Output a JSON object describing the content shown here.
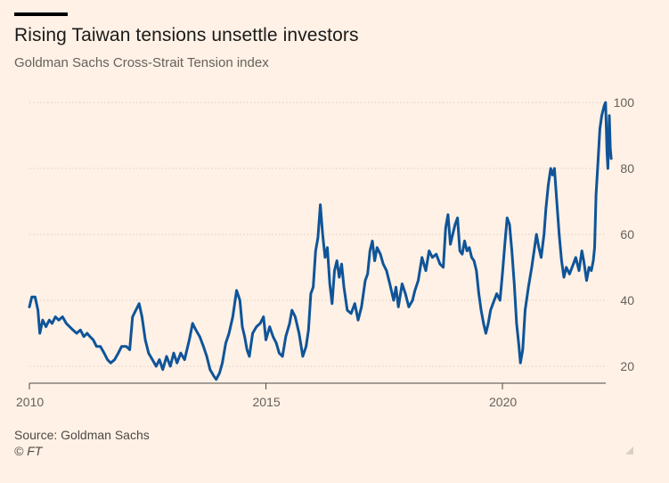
{
  "header": {
    "title": "Rising Taiwan tensions unsettle investors",
    "subtitle": "Goldman Sachs Cross-Strait Tension index"
  },
  "footer": {
    "source": "Source: Goldman Sachs",
    "copyright": "© FT"
  },
  "colors": {
    "background": "#fff1e5",
    "line": "#0f5499",
    "grid": "#d9cec5",
    "axis": "#66605c"
  },
  "chart_data": {
    "type": "line",
    "title": "Rising Taiwan tensions unsettle investors",
    "subtitle": "Goldman Sachs Cross-Strait Tension index",
    "xlabel": "",
    "ylabel": "",
    "xlim": [
      2010,
      2022.3
    ],
    "ylim": [
      15,
      100
    ],
    "x_ticks": [
      2010,
      2015,
      2020
    ],
    "x_tick_labels": [
      "2010",
      "2015",
      "2020"
    ],
    "y_ticks": [
      20,
      40,
      60,
      80,
      100
    ],
    "y_tick_labels": [
      "20",
      "40",
      "60",
      "80",
      "100"
    ],
    "y_axis_side": "right",
    "grid": "horizontal dotted",
    "legend": "none",
    "series": [
      {
        "points": [
          [
            2010.0,
            38
          ],
          [
            2010.05,
            41
          ],
          [
            2010.12,
            41
          ],
          [
            2010.18,
            37
          ],
          [
            2010.22,
            30
          ],
          [
            2010.28,
            34
          ],
          [
            2010.35,
            32
          ],
          [
            2010.42,
            34
          ],
          [
            2010.48,
            33
          ],
          [
            2010.55,
            35
          ],
          [
            2010.62,
            34
          ],
          [
            2010.7,
            35
          ],
          [
            2010.78,
            33
          ],
          [
            2010.85,
            32
          ],
          [
            2010.92,
            31
          ],
          [
            2011.0,
            30
          ],
          [
            2011.08,
            31
          ],
          [
            2011.15,
            29
          ],
          [
            2011.22,
            30
          ],
          [
            2011.28,
            29
          ],
          [
            2011.35,
            28
          ],
          [
            2011.42,
            26
          ],
          [
            2011.5,
            26
          ],
          [
            2011.58,
            24
          ],
          [
            2011.65,
            22
          ],
          [
            2011.72,
            21
          ],
          [
            2011.8,
            22
          ],
          [
            2011.88,
            24
          ],
          [
            2011.95,
            26
          ],
          [
            2012.05,
            26
          ],
          [
            2012.12,
            25
          ],
          [
            2012.18,
            35
          ],
          [
            2012.25,
            37
          ],
          [
            2012.32,
            39
          ],
          [
            2012.38,
            35
          ],
          [
            2012.45,
            28
          ],
          [
            2012.52,
            24
          ],
          [
            2012.6,
            22
          ],
          [
            2012.68,
            20
          ],
          [
            2012.75,
            22
          ],
          [
            2012.82,
            19
          ],
          [
            2012.9,
            23
          ],
          [
            2012.98,
            20
          ],
          [
            2013.05,
            24
          ],
          [
            2013.12,
            21
          ],
          [
            2013.2,
            24
          ],
          [
            2013.28,
            22
          ],
          [
            2013.38,
            28
          ],
          [
            2013.45,
            33
          ],
          [
            2013.52,
            31
          ],
          [
            2013.6,
            29
          ],
          [
            2013.68,
            26
          ],
          [
            2013.75,
            23
          ],
          [
            2013.82,
            19
          ],
          [
            2013.9,
            17
          ],
          [
            2013.95,
            16
          ],
          [
            2014.02,
            18
          ],
          [
            2014.08,
            21
          ],
          [
            2014.15,
            27
          ],
          [
            2014.22,
            30
          ],
          [
            2014.3,
            35
          ],
          [
            2014.38,
            43
          ],
          [
            2014.45,
            40
          ],
          [
            2014.5,
            32
          ],
          [
            2014.55,
            29
          ],
          [
            2014.6,
            25
          ],
          [
            2014.65,
            23
          ],
          [
            2014.72,
            30
          ],
          [
            2014.8,
            32
          ],
          [
            2014.88,
            33
          ],
          [
            2014.95,
            35
          ],
          [
            2015.0,
            28
          ],
          [
            2015.08,
            32
          ],
          [
            2015.15,
            29
          ],
          [
            2015.22,
            27
          ],
          [
            2015.28,
            24
          ],
          [
            2015.35,
            23
          ],
          [
            2015.42,
            29
          ],
          [
            2015.5,
            33
          ],
          [
            2015.55,
            37
          ],
          [
            2015.62,
            35
          ],
          [
            2015.7,
            30
          ],
          [
            2015.78,
            23
          ],
          [
            2015.85,
            26
          ],
          [
            2015.9,
            31
          ],
          [
            2015.95,
            42
          ],
          [
            2016.0,
            44
          ],
          [
            2016.05,
            55
          ],
          [
            2016.1,
            59
          ],
          [
            2016.15,
            69
          ],
          [
            2016.2,
            60
          ],
          [
            2016.25,
            53
          ],
          [
            2016.3,
            56
          ],
          [
            2016.35,
            45
          ],
          [
            2016.4,
            39
          ],
          [
            2016.45,
            49
          ],
          [
            2016.5,
            52
          ],
          [
            2016.55,
            47
          ],
          [
            2016.6,
            51
          ],
          [
            2016.65,
            44
          ],
          [
            2016.72,
            37
          ],
          [
            2016.8,
            36
          ],
          [
            2016.88,
            39
          ],
          [
            2016.95,
            34
          ],
          [
            2017.02,
            38
          ],
          [
            2017.1,
            46
          ],
          [
            2017.15,
            48
          ],
          [
            2017.2,
            55
          ],
          [
            2017.25,
            58
          ],
          [
            2017.3,
            52
          ],
          [
            2017.35,
            56
          ],
          [
            2017.42,
            54
          ],
          [
            2017.48,
            51
          ],
          [
            2017.55,
            49
          ],
          [
            2017.62,
            45
          ],
          [
            2017.7,
            40
          ],
          [
            2017.75,
            44
          ],
          [
            2017.8,
            38
          ],
          [
            2017.88,
            45
          ],
          [
            2017.95,
            42
          ],
          [
            2018.02,
            38
          ],
          [
            2018.1,
            40
          ],
          [
            2018.15,
            43
          ],
          [
            2018.22,
            46
          ],
          [
            2018.3,
            53
          ],
          [
            2018.38,
            49
          ],
          [
            2018.45,
            55
          ],
          [
            2018.52,
            53
          ],
          [
            2018.6,
            54
          ],
          [
            2018.68,
            51
          ],
          [
            2018.75,
            50
          ],
          [
            2018.8,
            62
          ],
          [
            2018.85,
            66
          ],
          [
            2018.9,
            57
          ],
          [
            2018.95,
            60
          ],
          [
            2019.0,
            63
          ],
          [
            2019.05,
            65
          ],
          [
            2019.1,
            55
          ],
          [
            2019.15,
            54
          ],
          [
            2019.2,
            58
          ],
          [
            2019.25,
            55
          ],
          [
            2019.3,
            56
          ],
          [
            2019.35,
            53
          ],
          [
            2019.4,
            52
          ],
          [
            2019.45,
            49
          ],
          [
            2019.5,
            42
          ],
          [
            2019.55,
            37
          ],
          [
            2019.6,
            33
          ],
          [
            2019.65,
            30
          ],
          [
            2019.7,
            33
          ],
          [
            2019.75,
            37
          ],
          [
            2019.8,
            39
          ],
          [
            2019.88,
            42
          ],
          [
            2019.95,
            40
          ],
          [
            2020.0,
            48
          ],
          [
            2020.05,
            57
          ],
          [
            2020.1,
            65
          ],
          [
            2020.15,
            63
          ],
          [
            2020.2,
            55
          ],
          [
            2020.25,
            45
          ],
          [
            2020.3,
            33
          ],
          [
            2020.35,
            26
          ],
          [
            2020.38,
            21
          ],
          [
            2020.43,
            25
          ],
          [
            2020.48,
            37
          ],
          [
            2020.55,
            44
          ],
          [
            2020.62,
            50
          ],
          [
            2020.68,
            56
          ],
          [
            2020.72,
            60
          ],
          [
            2020.77,
            56
          ],
          [
            2020.82,
            53
          ],
          [
            2020.88,
            60
          ],
          [
            2020.92,
            68
          ],
          [
            2020.97,
            75
          ],
          [
            2021.02,
            80
          ],
          [
            2021.06,
            78
          ],
          [
            2021.1,
            80
          ],
          [
            2021.14,
            72
          ],
          [
            2021.2,
            60
          ],
          [
            2021.25,
            52
          ],
          [
            2021.3,
            47
          ],
          [
            2021.35,
            50
          ],
          [
            2021.42,
            48
          ],
          [
            2021.5,
            51
          ],
          [
            2021.55,
            53
          ],
          [
            2021.62,
            49
          ],
          [
            2021.68,
            55
          ],
          [
            2021.72,
            52
          ],
          [
            2021.78,
            46
          ],
          [
            2021.83,
            50
          ],
          [
            2021.88,
            49
          ],
          [
            2021.92,
            52
          ],
          [
            2021.95,
            56
          ],
          [
            2021.98,
            72
          ],
          [
            2022.02,
            82
          ],
          [
            2022.06,
            92
          ],
          [
            2022.1,
            96
          ],
          [
            2022.15,
            99
          ],
          [
            2022.18,
            100
          ],
          [
            2022.21,
            85
          ],
          [
            2022.23,
            80
          ],
          [
            2022.26,
            96
          ],
          [
            2022.28,
            86
          ],
          [
            2022.3,
            83
          ]
        ]
      }
    ]
  }
}
